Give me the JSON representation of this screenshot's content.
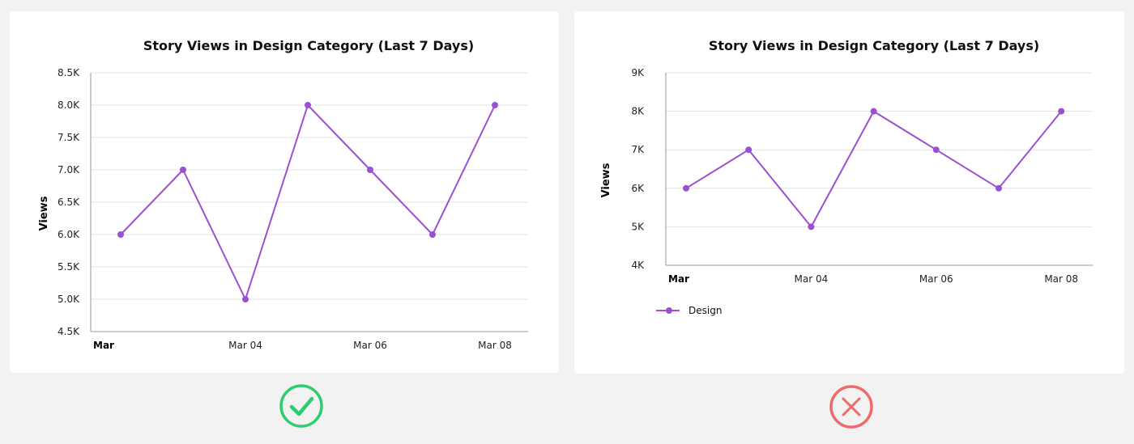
{
  "chart_data": [
    {
      "type": "line",
      "title": "Story Views in Design Category (Last 7 Days)",
      "ylabel": "Views",
      "xlabel": "",
      "x": [
        "2024-03-02",
        "2024-03-03",
        "2024-03-04",
        "2024-03-05",
        "2024-03-06",
        "2024-03-07",
        "2024-03-08"
      ],
      "x_tick_labels": [
        "Mar",
        "Mar 04",
        "Mar 06",
        "Mar 08"
      ],
      "y_tick_labels": [
        "4.5K",
        "5.0K",
        "5.5K",
        "6.0K",
        "6.5K",
        "7.0K",
        "7.5K",
        "8.0K",
        "8.5K"
      ],
      "y_ticks": [
        4500,
        5000,
        5500,
        6000,
        6500,
        7000,
        7500,
        8000,
        8500
      ],
      "ylim": [
        4500,
        8500
      ],
      "series": [
        {
          "values": [
            6000,
            7000,
            5000,
            8000,
            7000,
            6000,
            8000
          ],
          "color": "#9b4fd1"
        }
      ],
      "grid": true,
      "legend": "none"
    },
    {
      "type": "line",
      "title": "Story Views in Design Category (Last 7 Days)",
      "ylabel": "Views",
      "xlabel": "",
      "x": [
        "2024-03-02",
        "2024-03-03",
        "2024-03-04",
        "2024-03-05",
        "2024-03-06",
        "2024-03-07",
        "2024-03-08"
      ],
      "x_tick_labels": [
        "Mar",
        "Mar 04",
        "Mar 06",
        "Mar 08"
      ],
      "y_tick_labels": [
        "4K",
        "5K",
        "6K",
        "7K",
        "8K",
        "9K"
      ],
      "y_ticks": [
        4000,
        5000,
        6000,
        7000,
        8000,
        9000
      ],
      "ylim": [
        4000,
        9000
      ],
      "series": [
        {
          "name": "Design",
          "values": [
            6000,
            7000,
            5000,
            8000,
            7000,
            6000,
            8000
          ],
          "color": "#9b4fd1"
        }
      ],
      "grid": true,
      "legend": "bottom-left"
    }
  ],
  "indicators": {
    "good": {
      "icon": "checkmark-circle-icon",
      "color": "#2ecc71"
    },
    "bad": {
      "icon": "cross-circle-icon",
      "color": "#f06a6a"
    }
  }
}
